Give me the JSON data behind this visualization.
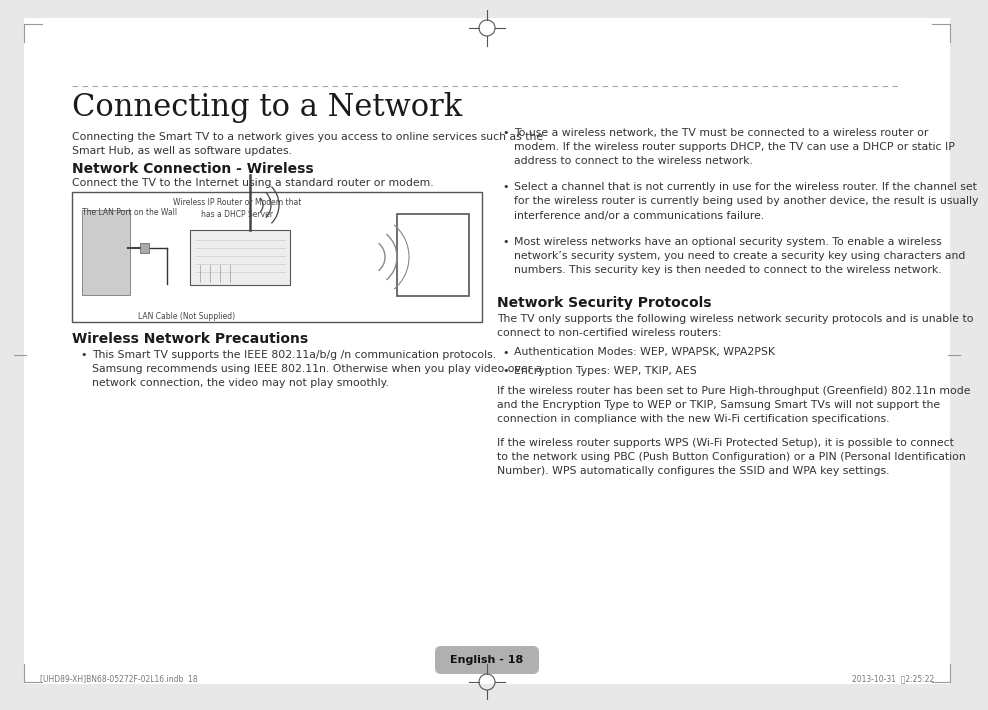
{
  "bg_color": "#e8e8e8",
  "page_bg": "#ffffff",
  "title": "Connecting to a Network",
  "intro_text": "Connecting the Smart TV to a network gives you access to online services such as the\nSmart Hub, as well as software updates.",
  "section1_title": "Network Connection - Wireless",
  "section1_subtitle": "Connect the TV to the Internet using a standard router or modem.",
  "section2_title": "Wireless Network Precautions",
  "section2_bullet1": "This Smart TV supports the IEEE 802.11a/b/g /n communication protocols.\nSamsung recommends using IEEE 802.11n. Otherwise when you play video over a\nnetwork connection, the video may not play smoothly.",
  "right_bullet1": "To use a wireless network, the TV must be connected to a wireless router or\nmodem. If the wireless router supports DHCP, the TV can use a DHCP or static IP\naddress to connect to the wireless network.",
  "right_bullet2": "Select a channel that is not currently in use for the wireless router. If the channel set\nfor the wireless router is currently being used by another device, the result is usually\ninterference and/or a communications failure.",
  "right_bullet3": "Most wireless networks have an optional security system. To enable a wireless\nnetwork’s security system, you need to create a security key using characters and\nnumbers. This security key is then needed to connect to the wireless network.",
  "section3_title": "Network Security Protocols",
  "section3_intro": "The TV only supports the following wireless network security protocols and is unable to\nconnect to non-certified wireless routers:",
  "section3_bullet1": "Authentication Modes: WEP, WPAPSK, WPA2PSK",
  "section3_bullet2": "Encryption Types: WEP, TKIP, AES",
  "section3_para1": "If the wireless router has been set to Pure High-throughput (Greenfield) 802.11n mode\nand the Encryption Type to WEP or TKIP, Samsung Smart TVs will not support the\nconnection in compliance with the new Wi-Fi certification specifications.",
  "section3_para2": "If the wireless router supports WPS (Wi-Fi Protected Setup), it is possible to connect\nto the network using PBC (Push Button Configuration) or a PIN (Personal Identification\nNumber). WPS automatically configures the SSID and WPA key settings.",
  "footer_text": "English - 18",
  "bottom_left": "[UHD89-XH]BN68-05272F-02L16.indb  18",
  "bottom_right": "2013-10-31  \u00042:25:22"
}
